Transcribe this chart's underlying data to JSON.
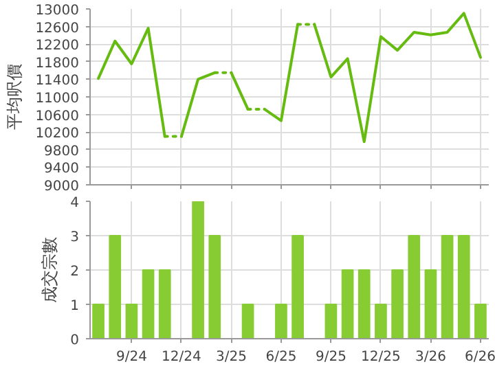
{
  "chart_data": [
    {
      "type": "line",
      "ylabel": "平均呎價",
      "categories": [
        null,
        null,
        null,
        null,
        null,
        null,
        null,
        null,
        null,
        null,
        null,
        null,
        null,
        null,
        null,
        null,
        null,
        null,
        null,
        null,
        null,
        null,
        null,
        null
      ],
      "ylim": [
        9000,
        13000
      ],
      "yticks": [
        9000,
        9400,
        9800,
        10200,
        10600,
        11000,
        11400,
        11800,
        12200,
        12600,
        13000
      ],
      "grid": true,
      "tick_labels": "y",
      "marker": "none",
      "series": [
        {
          "color": "#66bb11",
          "line_style": "solid",
          "values": [
            11420,
            12270,
            11750,
            12560,
            10100,
            null,
            null,
            null,
            11550,
            10720,
            null,
            null,
            null,
            12650,
            11450,
            11870,
            9980,
            12370,
            12060,
            12470,
            12410,
            12470,
            12900,
            11900
          ]
        },
        {
          "color": "#66bb11",
          "line_style": "solid",
          "values": [
            null,
            null,
            null,
            null,
            null,
            10100,
            11400,
            11550,
            null,
            null,
            10720,
            10460,
            12650,
            null,
            null,
            null,
            null,
            null,
            null,
            null,
            null,
            null,
            null,
            null
          ]
        },
        {
          "color": "#66bb11",
          "line_style": "dotted",
          "values": [
            null,
            null,
            null,
            null,
            10100,
            10100,
            null,
            null,
            null,
            10720,
            10720,
            null,
            null,
            null,
            null,
            null,
            null,
            null,
            null,
            null,
            null,
            null,
            null,
            null
          ]
        },
        {
          "color": "#66bb11",
          "line_style": "dotted",
          "values": [
            null,
            null,
            null,
            null,
            null,
            null,
            null,
            11550,
            11550,
            null,
            null,
            null,
            12650,
            12650,
            null,
            null,
            null,
            null,
            null,
            null,
            null,
            null,
            null,
            null
          ]
        }
      ]
    },
    {
      "type": "bar",
      "ylabel": "成交宗數",
      "categories": [
        null,
        null,
        "9/24",
        null,
        null,
        "12/24",
        null,
        null,
        "3/25",
        null,
        null,
        "6/25",
        null,
        null,
        "9/25",
        null,
        null,
        "12/25",
        null,
        null,
        "3/26",
        null,
        null,
        "6/26"
      ],
      "ylim": [
        0,
        4
      ],
      "yticks": [
        0,
        1,
        2,
        3,
        4
      ],
      "grid": true,
      "color": "#88cc33",
      "values": [
        1,
        3,
        1,
        2,
        2,
        0,
        4,
        3,
        0,
        1,
        0,
        1,
        3,
        0,
        1,
        2,
        2,
        1,
        2,
        3,
        2,
        3,
        3,
        1
      ]
    }
  ]
}
